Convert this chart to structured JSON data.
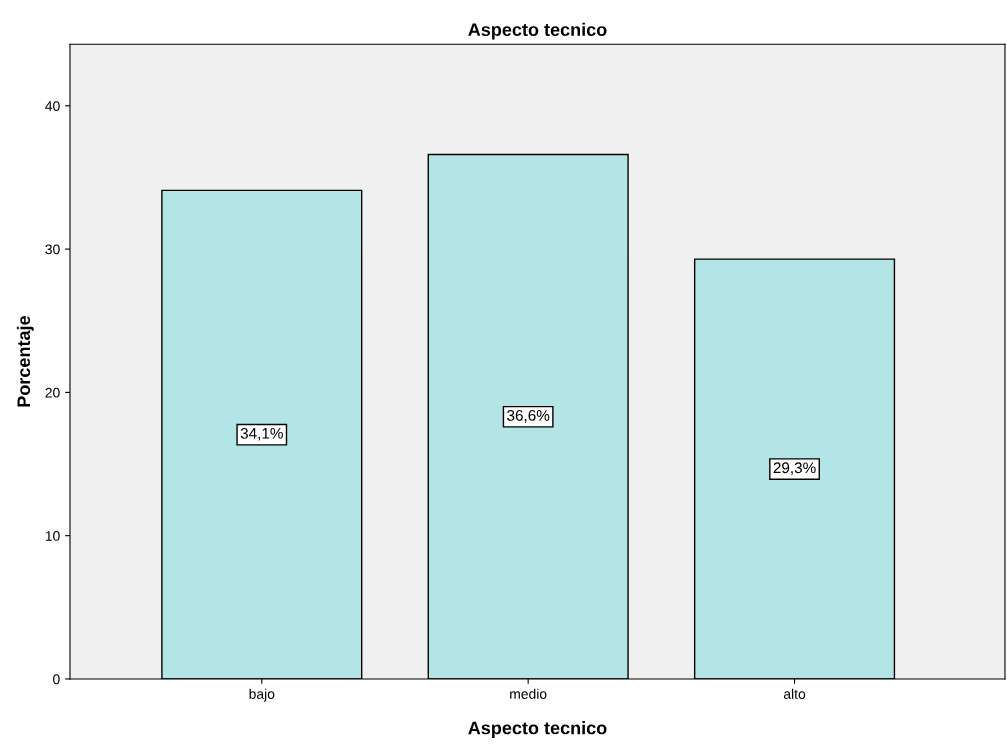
{
  "chart_data": {
    "type": "bar",
    "title": "Aspecto tecnico",
    "xlabel": "Aspecto tecnico",
    "ylabel": "Porcentaje",
    "categories": [
      "bajo",
      "medio",
      "alto"
    ],
    "values": [
      34.1,
      36.6,
      29.3
    ],
    "value_labels": [
      "34,1%",
      "36,6%",
      "29,3%"
    ],
    "color": "#b3e5e7",
    "ylim": [
      0,
      44.3
    ],
    "yticks": [
      0,
      10,
      20,
      30,
      40
    ],
    "grid": false
  }
}
